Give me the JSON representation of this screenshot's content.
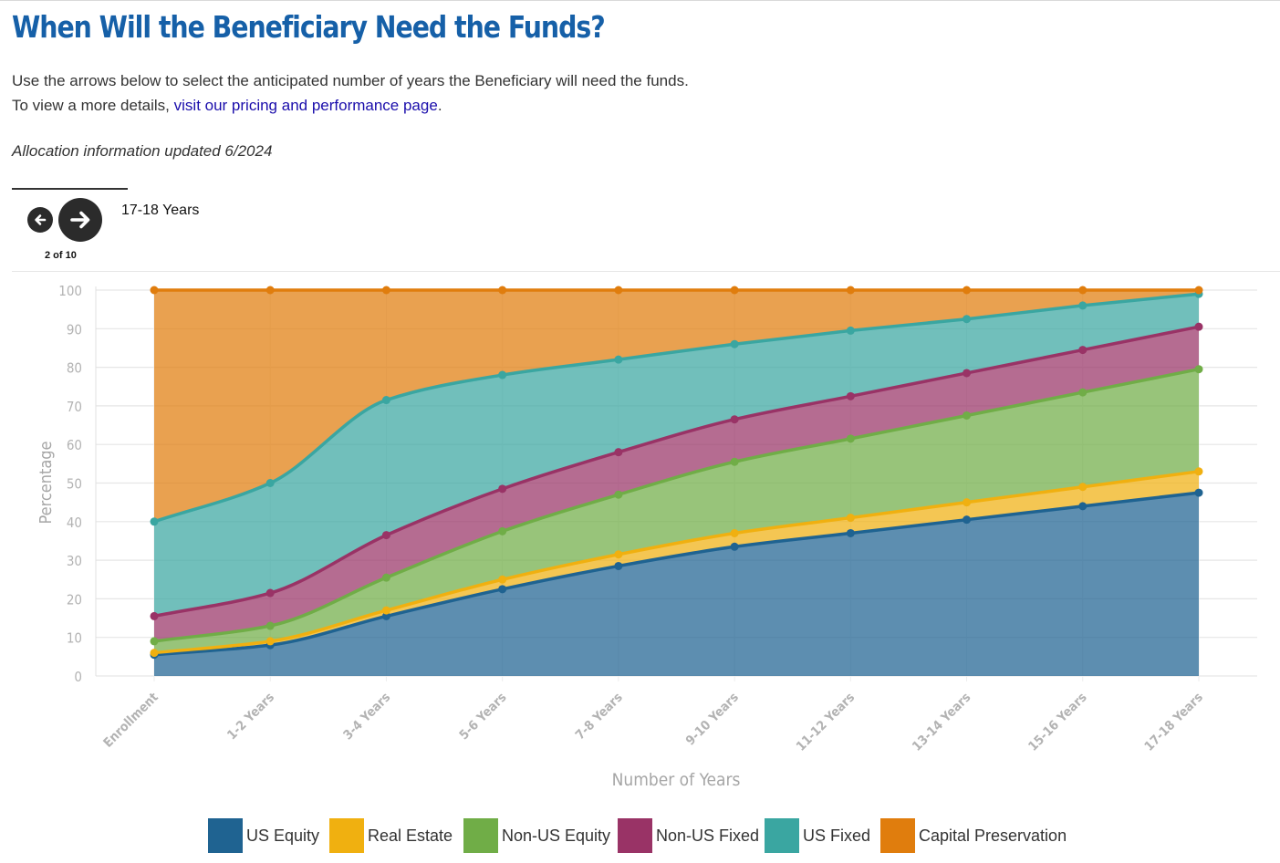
{
  "header": {
    "title": "When Will the Beneficiary Need the Funds?",
    "line1": "Use the arrows below to select the anticipated number of years the Beneficiary will need the funds.",
    "line2_prefix": "To view a more details, ",
    "line2_link": "visit our pricing and performance page",
    "line2_suffix": ".",
    "note": "Allocation information updated 6/2024"
  },
  "controls": {
    "prev_icon": "arrow-left-icon",
    "next_icon": "arrow-right-icon",
    "page_count": "2 of 10",
    "selected_period": "17-18 Years"
  },
  "chart_data": {
    "type": "area",
    "stacked": true,
    "xlabel": "Number of Years",
    "ylabel": "Percentage",
    "ylim": [
      0,
      100
    ],
    "yticks": [
      0,
      10,
      20,
      30,
      40,
      50,
      60,
      70,
      80,
      90,
      100
    ],
    "grid": true,
    "legend_position": "bottom",
    "categories": [
      "Enrollment",
      "1-2 Years",
      "3-4 Years",
      "5-6 Years",
      "7-8 Years",
      "9-10 Years",
      "11-12 Years",
      "13-14 Years",
      "15-16 Years",
      "17-18 Years"
    ],
    "series": [
      {
        "name": "US Equity",
        "color": "#1f6391",
        "values": [
          5.5,
          8,
          15.5,
          22.5,
          28.5,
          33.5,
          37,
          40.5,
          44,
          47.5
        ]
      },
      {
        "name": "Real Estate",
        "color": "#f0b010",
        "values": [
          0.5,
          1,
          1.5,
          2.5,
          3,
          3.5,
          4,
          4.5,
          5,
          5.5
        ]
      },
      {
        "name": "Non-US Equity",
        "color": "#70ad47",
        "values": [
          3,
          4,
          8.5,
          12.5,
          15.5,
          18.5,
          20.5,
          22.5,
          24.5,
          26.5
        ]
      },
      {
        "name": "Non-US Fixed",
        "color": "#993366",
        "values": [
          6.5,
          8.5,
          11,
          11,
          11,
          11,
          11,
          11,
          11,
          11
        ]
      },
      {
        "name": "US Fixed",
        "color": "#3aa6a1",
        "values": [
          24.5,
          28.5,
          35,
          29.5,
          24,
          19.5,
          17,
          14,
          11.5,
          8.5
        ]
      },
      {
        "name": "Capital Preservation",
        "color": "#e07d0d",
        "values": [
          60,
          50,
          28.5,
          22,
          18,
          14,
          10.5,
          7.5,
          4,
          1
        ]
      }
    ]
  }
}
